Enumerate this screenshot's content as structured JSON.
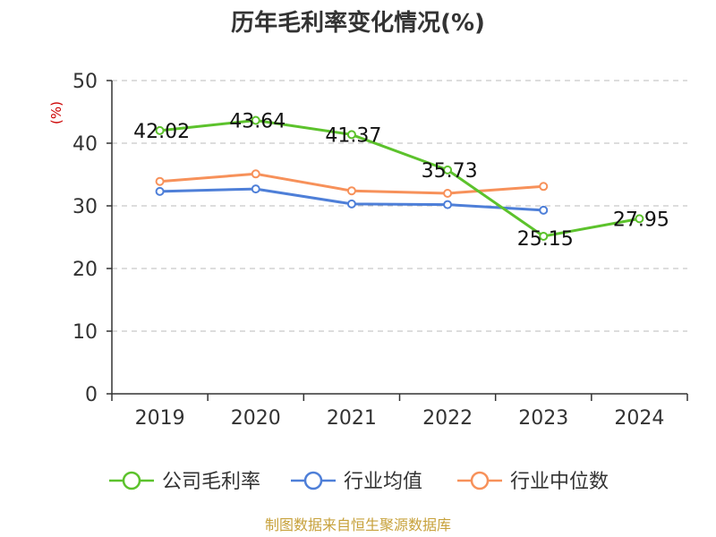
{
  "chart_data": {
    "type": "line",
    "title": "历年毛利率变化情况(%)",
    "ylabel": "(%)",
    "xlabel": "",
    "categories": [
      "2019",
      "2020",
      "2021",
      "2022",
      "2023",
      "2024"
    ],
    "ylim": [
      0,
      50
    ],
    "yticks": [
      0,
      10,
      20,
      30,
      40,
      50
    ],
    "grid": true,
    "legend_position": "bottom",
    "series": [
      {
        "name": "公司毛利率",
        "color": "#5cc22c",
        "values": [
          42.02,
          43.64,
          41.37,
          35.73,
          25.15,
          27.95
        ],
        "labels": [
          "42.02",
          "43.64",
          "41.37",
          "35.73",
          "25.15",
          "27.95"
        ]
      },
      {
        "name": "行业均值",
        "color": "#4e7fd8",
        "values": [
          32.3,
          32.7,
          30.3,
          30.2,
          29.3,
          null
        ]
      },
      {
        "name": "行业中位数",
        "color": "#f7915a",
        "values": [
          33.9,
          35.1,
          32.4,
          32.0,
          33.1,
          null
        ]
      }
    ]
  },
  "source": "制图数据来自恒生聚源数据库"
}
